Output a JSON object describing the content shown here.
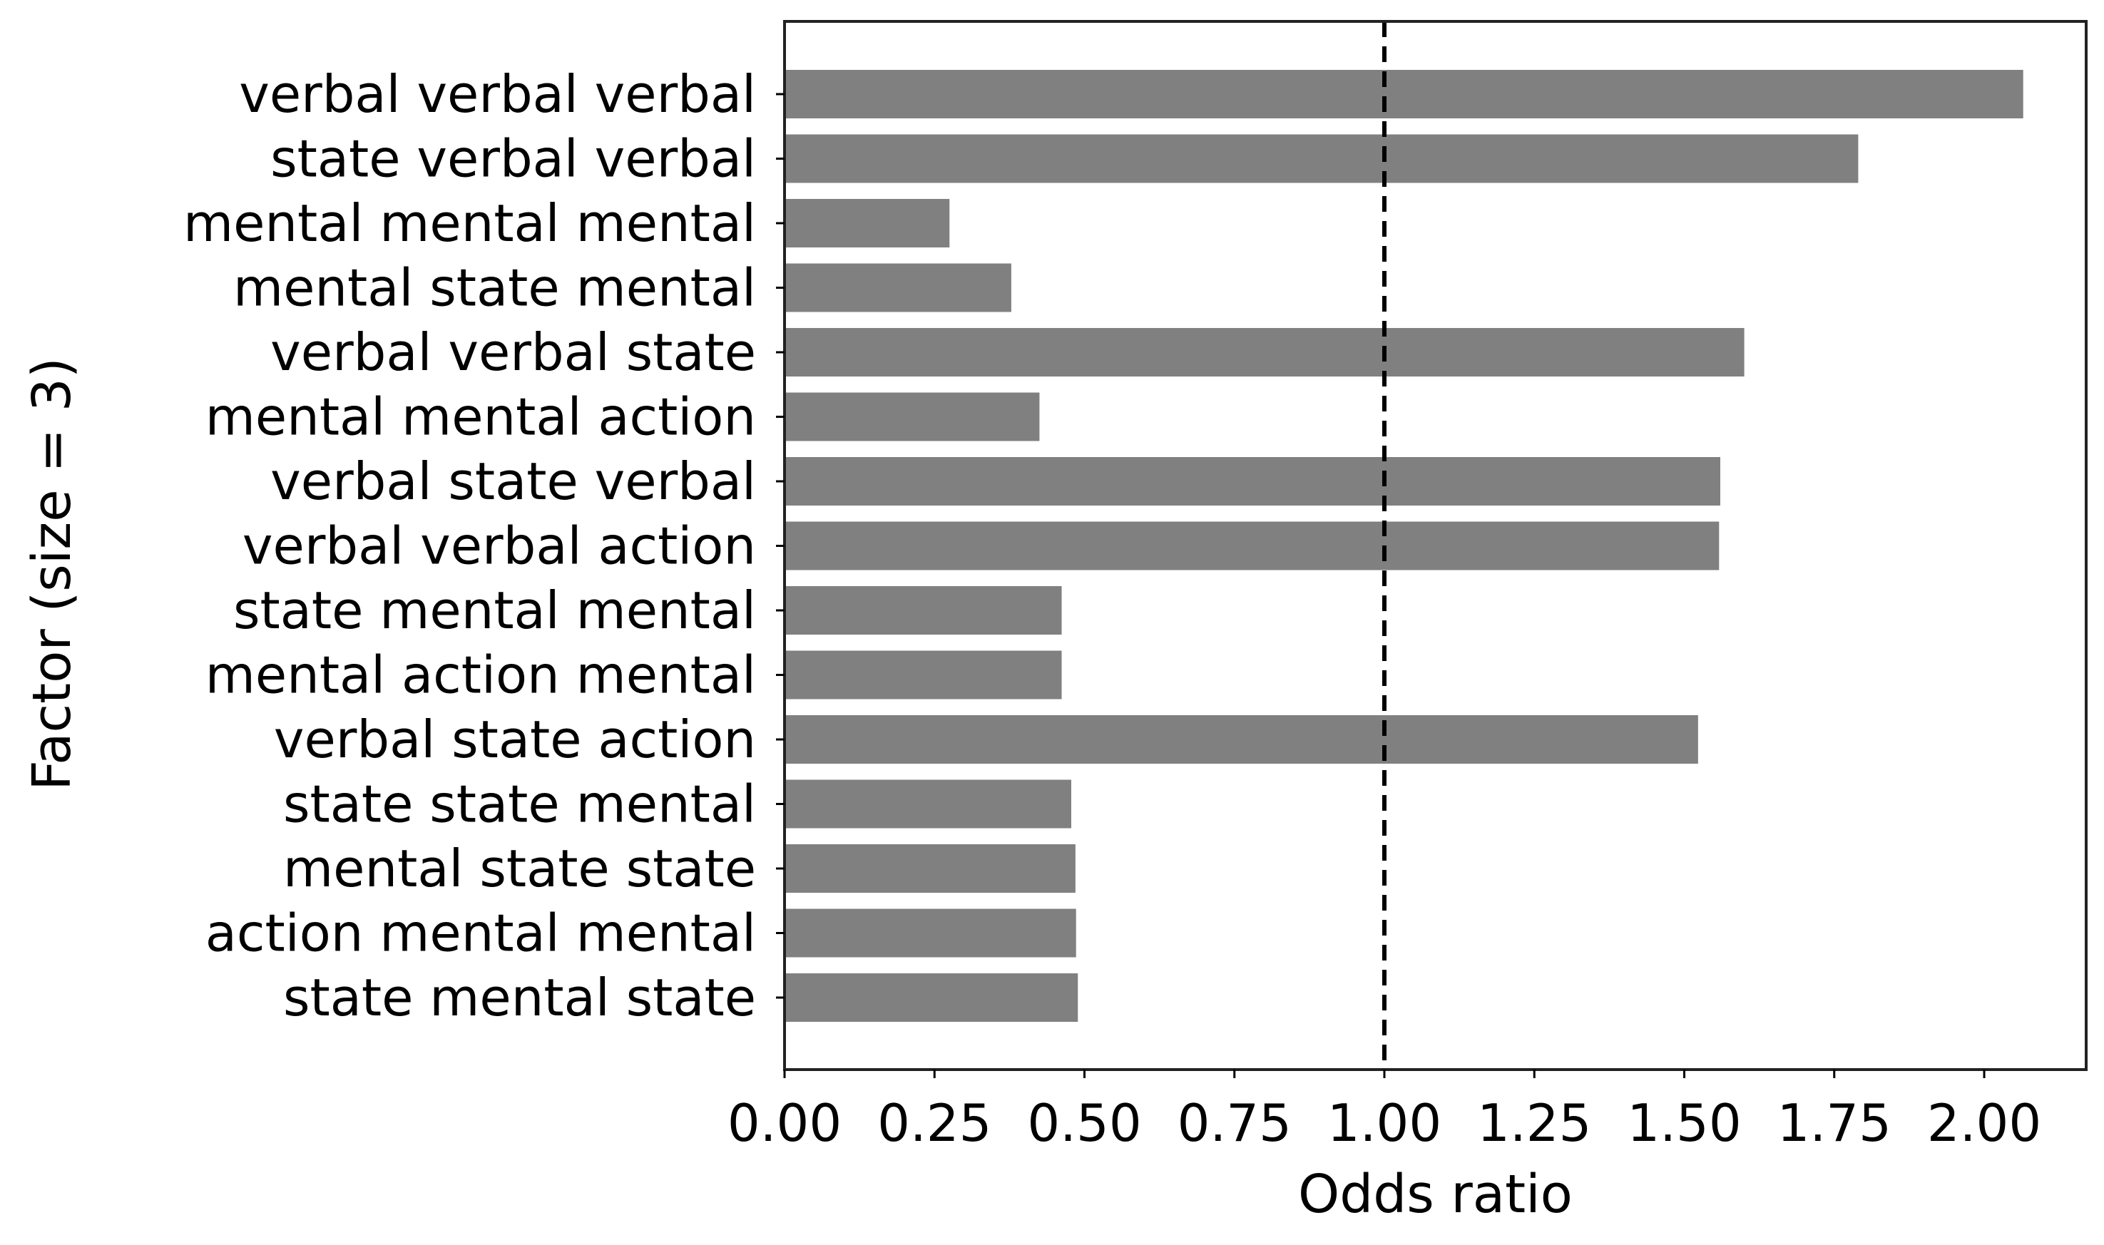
{
  "chart_data": {
    "type": "bar",
    "orientation": "horizontal",
    "categories": [
      "verbal verbal verbal",
      "state verbal verbal",
      "mental mental mental",
      "mental state mental",
      "verbal verbal state",
      "mental mental action",
      "verbal state verbal",
      "verbal verbal action",
      "state mental mental",
      "mental action mental",
      "verbal state action",
      "state state mental",
      "mental state state",
      "action mental mental",
      "state mental state"
    ],
    "values": [
      2.065,
      1.79,
      0.275,
      0.378,
      1.6,
      0.425,
      1.56,
      1.558,
      0.462,
      0.462,
      1.523,
      0.478,
      0.485,
      0.486,
      0.489
    ],
    "xlabel": "Odds ratio",
    "ylabel": "Factor (size = 3)",
    "xlim": [
      0.0,
      2.17
    ],
    "xticks": [
      "0.00",
      "0.25",
      "0.50",
      "0.75",
      "1.00",
      "1.25",
      "1.50",
      "1.75",
      "2.00"
    ],
    "reference_line": {
      "x": 1.0,
      "style": "dashed"
    },
    "bar_color": "#808080",
    "grid": false
  }
}
